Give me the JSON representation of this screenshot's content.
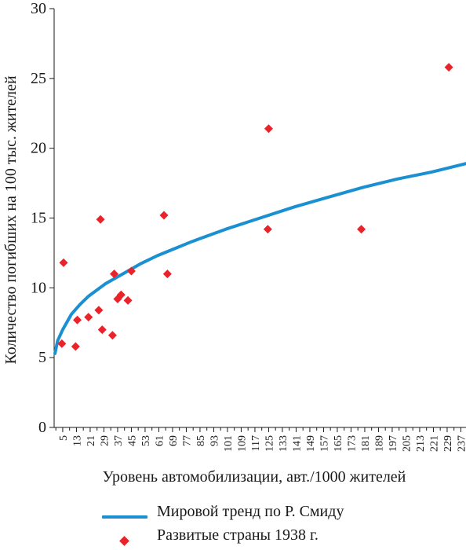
{
  "chart_data": {
    "type": "scatter",
    "xlabel": "Уровень автомобилизации, авт./1000 жителей",
    "ylabel": "Количество погибших на 100 тыс. жителей",
    "xlim": [
      0,
      240
    ],
    "ylim": [
      0,
      30
    ],
    "xticks": [
      5,
      13,
      21,
      29,
      37,
      45,
      53,
      61,
      69,
      77,
      85,
      93,
      101,
      109,
      117,
      125,
      133,
      141,
      149,
      157,
      165,
      173,
      181,
      189,
      197,
      205,
      213,
      221,
      229,
      237
    ],
    "yticks": [
      0,
      5,
      10,
      15,
      20,
      25,
      30
    ],
    "series": [
      {
        "name": "Мировой тренд по Р. Смиду",
        "kind": "line",
        "color": "#1a8fd1",
        "x": [
          0.5,
          2,
          5,
          10,
          15,
          20,
          30,
          40,
          50,
          60,
          70,
          80,
          100,
          120,
          140,
          160,
          180,
          200,
          220,
          240
        ],
        "y": [
          5.3,
          6.2,
          7.0,
          8.1,
          8.8,
          9.4,
          10.3,
          11.0,
          11.7,
          12.3,
          12.8,
          13.3,
          14.2,
          15.0,
          15.8,
          16.5,
          17.2,
          17.8,
          18.3,
          18.9
        ]
      },
      {
        "name": "Развитые страны 1938 г.",
        "kind": "scatter",
        "color": "#e8232a",
        "x": [
          4.5,
          5.5,
          12.5,
          13.5,
          20,
          26,
          27,
          28,
          34,
          35,
          37,
          39,
          43,
          45,
          64,
          66,
          124.5,
          125,
          179,
          230
        ],
        "y": [
          6.0,
          11.8,
          5.8,
          7.7,
          7.9,
          8.4,
          14.9,
          7.0,
          6.6,
          11.0,
          9.2,
          9.5,
          9.1,
          11.2,
          15.2,
          11.0,
          14.2,
          21.4,
          14.2,
          25.8
        ]
      }
    ]
  },
  "legend": {
    "line_label": "Мировой тренд по Р. Смиду",
    "marker_label": "Развитые  страны 1938 г."
  }
}
